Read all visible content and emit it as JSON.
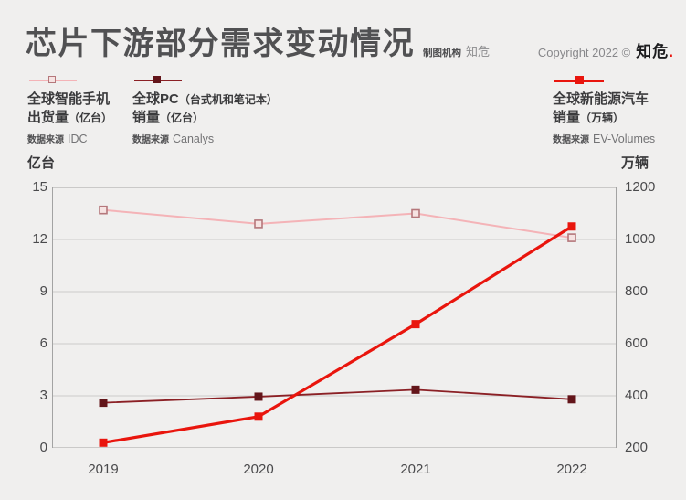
{
  "header": {
    "title": "芯片下游部分需求变动情况",
    "credit_label": "制图机构",
    "credit_value": "知危",
    "copyright_prefix": "Copyright 2022 ©",
    "copyright_brand": "知危",
    "copyright_dot": "."
  },
  "legend": {
    "items": [
      {
        "title_main": "全球智能手机",
        "title_paren": "",
        "line2_main": "出货量",
        "line2_paren": "（亿台）",
        "source_label": "数据来源",
        "source": "IDC",
        "swatch": "hollow-square"
      },
      {
        "title_main": "全球PC",
        "title_paren": "（台式机和笔记本）",
        "line2_main": "销量",
        "line2_paren": "（亿台）",
        "source_label": "数据来源",
        "source": "Canalys",
        "swatch": "filled-square"
      },
      {
        "title_main": "全球新能源汽车",
        "title_paren": "",
        "line2_main": "销量",
        "line2_paren": "（万辆）",
        "source_label": "数据来源",
        "source": "EV-Volumes",
        "swatch": "filled-square"
      }
    ]
  },
  "colors": {
    "background": "#f0efee",
    "grid": "#cbcbcb",
    "axis_border": "#a3a3a3",
    "title": "#515153",
    "brand_red": "#e9150d"
  },
  "chart_data": {
    "type": "line",
    "categories": [
      "2019",
      "2020",
      "2021",
      "2022"
    ],
    "y_left": {
      "label": "亿台",
      "ticks": [
        0,
        3,
        6,
        9,
        12,
        15
      ],
      "range": [
        0,
        15
      ]
    },
    "y_right": {
      "label": "万辆",
      "ticks": [
        200,
        400,
        600,
        800,
        1000,
        1200
      ],
      "range": [
        200,
        1200
      ]
    },
    "grid": "horizontal",
    "legend_position": "top",
    "series": [
      {
        "name": "全球智能手机出货量（亿台）",
        "axis": "left",
        "values": [
          13.7,
          12.9,
          13.5,
          12.1
        ],
        "color": "#f4b3b7",
        "line_width": 2,
        "marker": "hollow-square",
        "marker_fill": "#f6e3e2",
        "marker_stroke": "#b5777b",
        "source": "IDC"
      },
      {
        "name": "全球PC（台式机和笔记本）销量（亿台）",
        "axis": "left",
        "values": [
          2.6,
          2.95,
          3.35,
          2.8
        ],
        "color": "#8b2025",
        "line_width": 1.8,
        "marker": "filled-square",
        "marker_fill": "#63151a",
        "marker_stroke": "none",
        "source": "Canalys"
      },
      {
        "name": "全球新能源汽车销量（万辆）",
        "axis": "right",
        "values": [
          220,
          320,
          675,
          1050
        ],
        "color": "#e9150d",
        "line_width": 3.2,
        "marker": "filled-square",
        "marker_fill": "#e9150d",
        "marker_stroke": "none",
        "source": "EV-Volumes"
      }
    ]
  }
}
